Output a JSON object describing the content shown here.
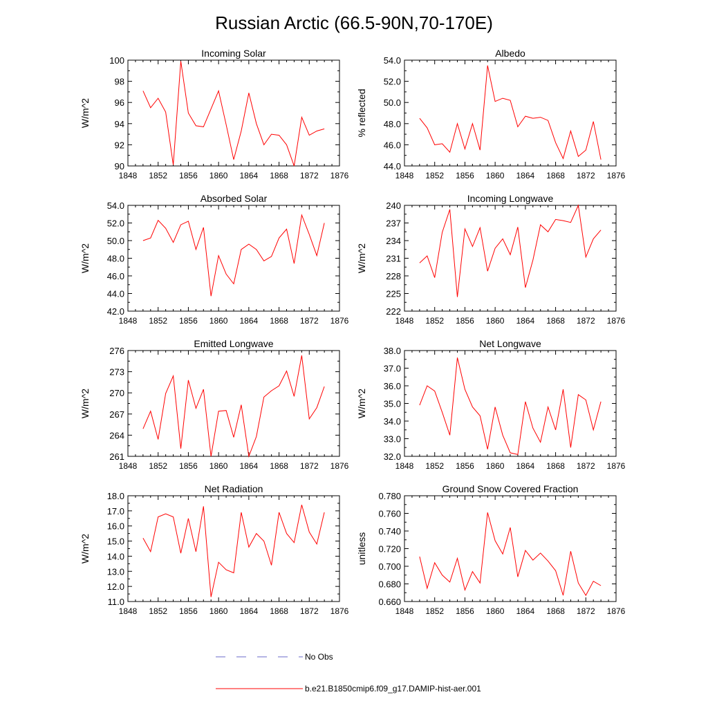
{
  "figure": {
    "title": "Russian Arctic (66.5-90N,70-170E)",
    "series_color": "#ff0000",
    "obs_color": "#6a6ac8"
  },
  "legend": {
    "obs_label": "No Obs",
    "model_label": "b.e21.B1850cmip6.f09_g17.DAMIP-hist-aer.001"
  },
  "chart_data": [
    {
      "type": "line",
      "title": "Incoming Solar",
      "ylabel": "W/m^2",
      "xlim": [
        1848,
        1876
      ],
      "ylim": [
        90,
        100
      ],
      "yticks": [
        "90",
        "92",
        "94",
        "96",
        "98",
        "100"
      ],
      "xticks": [
        "1848",
        "1852",
        "1856",
        "1860",
        "1864",
        "1868",
        "1872",
        "1876"
      ],
      "x": [
        1850,
        1851,
        1852,
        1853,
        1854,
        1855,
        1856,
        1857,
        1858,
        1859,
        1860,
        1861,
        1862,
        1863,
        1864,
        1865,
        1866,
        1867,
        1868,
        1869,
        1870,
        1871,
        1872,
        1873,
        1874
      ],
      "y": [
        97.1,
        95.5,
        96.4,
        95.1,
        90.1,
        99.9,
        95.0,
        93.8,
        93.7,
        95.4,
        97.1,
        93.9,
        90.6,
        93.3,
        96.9,
        94.0,
        92.0,
        93.0,
        92.9,
        92.0,
        90.0,
        94.6,
        92.9,
        93.3,
        93.5
      ]
    },
    {
      "type": "line",
      "title": "Albedo",
      "ylabel": "% reflected",
      "xlim": [
        1848,
        1876
      ],
      "ylim": [
        44,
        54
      ],
      "yticks": [
        "44.0",
        "46.0",
        "48.0",
        "50.0",
        "52.0",
        "54.0"
      ],
      "xticks": [
        "1848",
        "1852",
        "1856",
        "1860",
        "1864",
        "1868",
        "1872",
        "1876"
      ],
      "x": [
        1850,
        1851,
        1852,
        1853,
        1854,
        1855,
        1856,
        1857,
        1858,
        1859,
        1860,
        1861,
        1862,
        1863,
        1864,
        1865,
        1866,
        1867,
        1868,
        1869,
        1870,
        1871,
        1872,
        1873,
        1874
      ],
      "y": [
        48.5,
        47.6,
        46.0,
        46.1,
        45.3,
        48.0,
        45.6,
        48.0,
        45.5,
        53.5,
        50.1,
        50.4,
        50.2,
        47.7,
        48.7,
        48.5,
        48.6,
        48.3,
        46.2,
        44.7,
        47.3,
        44.9,
        45.5,
        48.2,
        44.6
      ]
    },
    {
      "type": "line",
      "title": "Absorbed Solar",
      "ylabel": "W/m^2",
      "xlim": [
        1848,
        1876
      ],
      "ylim": [
        42,
        54
      ],
      "yticks": [
        "42.0",
        "44.0",
        "46.0",
        "48.0",
        "50.0",
        "52.0",
        "54.0"
      ],
      "xticks": [
        "1848",
        "1852",
        "1856",
        "1860",
        "1864",
        "1868",
        "1872",
        "1876"
      ],
      "x": [
        1850,
        1851,
        1852,
        1853,
        1854,
        1855,
        1856,
        1857,
        1858,
        1859,
        1860,
        1861,
        1862,
        1863,
        1864,
        1865,
        1866,
        1867,
        1868,
        1869,
        1870,
        1871,
        1872,
        1873,
        1874
      ],
      "y": [
        50.0,
        50.3,
        52.3,
        51.4,
        49.8,
        51.8,
        52.2,
        49.0,
        51.5,
        43.7,
        48.3,
        46.2,
        45.1,
        49.0,
        49.6,
        49.0,
        47.7,
        48.2,
        50.3,
        51.3,
        47.4,
        52.9,
        50.7,
        48.3,
        52.0
      ]
    },
    {
      "type": "line",
      "title": "Incoming Longwave",
      "ylabel": "W/m^2",
      "xlim": [
        1848,
        1876
      ],
      "ylim": [
        222,
        240
      ],
      "yticks": [
        "222",
        "225",
        "228",
        "231",
        "234",
        "237",
        "240"
      ],
      "xticks": [
        "1848",
        "1852",
        "1856",
        "1860",
        "1864",
        "1868",
        "1872",
        "1876"
      ],
      "x": [
        1850,
        1851,
        1852,
        1853,
        1854,
        1855,
        1856,
        1857,
        1858,
        1859,
        1860,
        1861,
        1862,
        1863,
        1864,
        1865,
        1866,
        1867,
        1868,
        1869,
        1870,
        1871,
        1872,
        1873,
        1874
      ],
      "y": [
        230.2,
        231.4,
        227.7,
        235.4,
        239.3,
        224.4,
        236.0,
        233.0,
        236.2,
        228.8,
        232.7,
        234.3,
        231.6,
        236.3,
        226.0,
        230.7,
        236.7,
        235.5,
        237.6,
        237.4,
        237.1,
        240.0,
        231.2,
        234.3,
        235.8
      ]
    },
    {
      "type": "line",
      "title": "Emitted Longwave",
      "ylabel": "W/m^2",
      "xlim": [
        1848,
        1876
      ],
      "ylim": [
        261,
        276
      ],
      "yticks": [
        "261",
        "264",
        "267",
        "270",
        "273",
        "276"
      ],
      "xticks": [
        "1848",
        "1852",
        "1856",
        "1860",
        "1864",
        "1868",
        "1872",
        "1876"
      ],
      "x": [
        1850,
        1851,
        1852,
        1853,
        1854,
        1855,
        1856,
        1857,
        1858,
        1859,
        1860,
        1861,
        1862,
        1863,
        1864,
        1865,
        1866,
        1867,
        1868,
        1869,
        1870,
        1871,
        1872,
        1873,
        1874
      ],
      "y": [
        264.9,
        267.4,
        263.4,
        269.9,
        272.4,
        262.1,
        271.8,
        267.8,
        270.5,
        261.0,
        267.4,
        267.5,
        263.7,
        268.3,
        261.0,
        263.8,
        269.4,
        270.3,
        271.0,
        273.1,
        269.5,
        275.3,
        266.3,
        267.9,
        270.9
      ]
    },
    {
      "type": "line",
      "title": "Net Longwave",
      "ylabel": "W/m^2",
      "xlim": [
        1848,
        1876
      ],
      "ylim": [
        32,
        38
      ],
      "yticks": [
        "32.0",
        "33.0",
        "34.0",
        "35.0",
        "36.0",
        "37.0",
        "38.0"
      ],
      "xticks": [
        "1848",
        "1852",
        "1856",
        "1860",
        "1864",
        "1868",
        "1872",
        "1876"
      ],
      "x": [
        1850,
        1851,
        1852,
        1853,
        1854,
        1855,
        1856,
        1857,
        1858,
        1859,
        1860,
        1861,
        1862,
        1863,
        1864,
        1865,
        1866,
        1867,
        1868,
        1869,
        1870,
        1871,
        1872,
        1873,
        1874
      ],
      "y": [
        34.9,
        36.0,
        35.7,
        34.5,
        33.2,
        37.6,
        35.8,
        34.8,
        34.3,
        32.4,
        34.8,
        33.2,
        32.2,
        32.1,
        35.1,
        33.6,
        32.8,
        34.8,
        33.5,
        35.8,
        32.5,
        35.5,
        35.2,
        33.5,
        35.1
      ]
    },
    {
      "type": "line",
      "title": "Net Radiation",
      "ylabel": "W/m^2",
      "xlim": [
        1848,
        1876
      ],
      "ylim": [
        11,
        18
      ],
      "yticks": [
        "11.0",
        "12.0",
        "13.0",
        "14.0",
        "15.0",
        "16.0",
        "17.0",
        "18.0"
      ],
      "xticks": [
        "1848",
        "1852",
        "1856",
        "1860",
        "1864",
        "1868",
        "1872",
        "1876"
      ],
      "x": [
        1850,
        1851,
        1852,
        1853,
        1854,
        1855,
        1856,
        1857,
        1858,
        1859,
        1860,
        1861,
        1862,
        1863,
        1864,
        1865,
        1866,
        1867,
        1868,
        1869,
        1870,
        1871,
        1872,
        1873,
        1874
      ],
      "y": [
        15.2,
        14.3,
        16.6,
        16.8,
        16.6,
        14.2,
        16.5,
        14.3,
        17.3,
        11.3,
        13.6,
        13.1,
        12.9,
        16.9,
        14.6,
        15.5,
        15.0,
        13.4,
        16.9,
        15.5,
        14.9,
        17.4,
        15.6,
        14.8,
        16.9
      ]
    },
    {
      "type": "line",
      "title": "Ground Snow Covered Fraction",
      "ylabel": "unitless",
      "xlim": [
        1848,
        1876
      ],
      "ylim": [
        0.66,
        0.78
      ],
      "yticks": [
        "0.660",
        "0.680",
        "0.700",
        "0.720",
        "0.740",
        "0.760",
        "0.780"
      ],
      "xticks": [
        "1848",
        "1852",
        "1856",
        "1860",
        "1864",
        "1868",
        "1872",
        "1876"
      ],
      "x": [
        1850,
        1851,
        1852,
        1853,
        1854,
        1855,
        1856,
        1857,
        1858,
        1859,
        1860,
        1861,
        1862,
        1863,
        1864,
        1865,
        1866,
        1867,
        1868,
        1869,
        1870,
        1871,
        1872,
        1873,
        1874
      ],
      "y": [
        0.711,
        0.675,
        0.704,
        0.69,
        0.682,
        0.709,
        0.673,
        0.694,
        0.681,
        0.761,
        0.729,
        0.714,
        0.744,
        0.688,
        0.718,
        0.707,
        0.715,
        0.706,
        0.695,
        0.667,
        0.717,
        0.681,
        0.667,
        0.683,
        0.678
      ]
    }
  ]
}
